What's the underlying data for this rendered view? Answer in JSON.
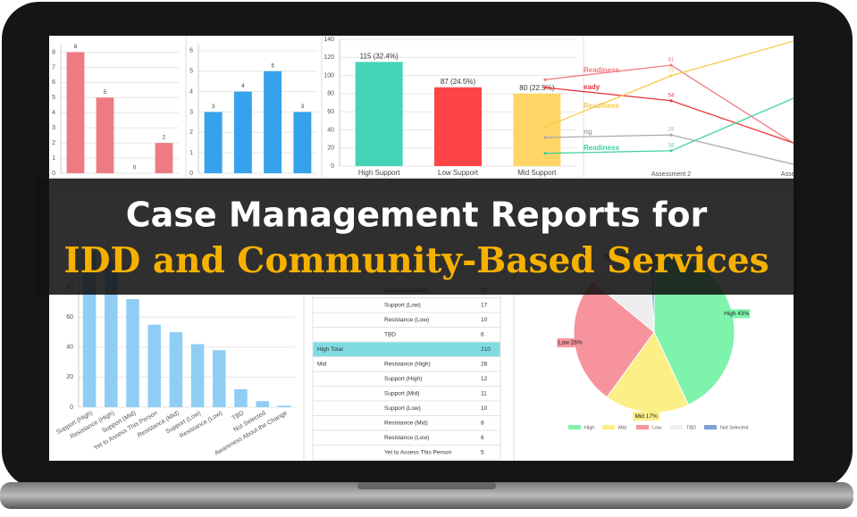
{
  "banner": {
    "line1": "Case Management Reports for",
    "line2": "IDD and Community-Based Services"
  },
  "chart_data": [
    {
      "type": "bar",
      "categories": [
        null,
        null,
        null,
        null
      ],
      "values": [
        8,
        5,
        0,
        2
      ],
      "color": "#ee7b84",
      "ylim": [
        0,
        8.5
      ],
      "yticks": [
        0,
        1,
        2,
        3,
        4,
        5,
        6,
        7,
        8
      ],
      "grid": true,
      "data_labels": true
    },
    {
      "type": "bar",
      "categories": [
        null,
        null,
        null,
        null
      ],
      "values": [
        3,
        4,
        5,
        3
      ],
      "color": "#36a2eb",
      "ylim": [
        0,
        6.3
      ],
      "yticks": [
        0,
        1,
        2,
        3,
        4,
        5,
        6
      ],
      "grid": true,
      "data_labels": true
    },
    {
      "type": "bar",
      "categories": [
        "High Support",
        "Low Support",
        "Mid Support"
      ],
      "values": [
        115,
        87,
        80
      ],
      "value_labels": [
        "115 (32.4%)",
        "87 (24.5%)",
        "80 (22.5%)"
      ],
      "colors": [
        "#45d4b6",
        "#ff4447",
        "#ffd666"
      ],
      "ylim": [
        0,
        140
      ],
      "yticks": [
        0,
        20,
        40,
        60,
        80,
        100,
        120,
        140
      ],
      "grid": true,
      "data_labels": true
    },
    {
      "type": "line",
      "categories": [
        null,
        "Assessment 2",
        "Assessmen"
      ],
      "series": [
        {
          "name": "Readiness",
          "color": "#f07a80",
          "values": [
            70,
            81,
            20
          ]
        },
        {
          "name": "eady",
          "color": "#e8383d",
          "values": [
            64,
            54,
            21
          ]
        },
        {
          "name": "Readiness",
          "color": "#f6c94d",
          "values": [
            34,
            73,
            100
          ]
        },
        {
          "name": "ng",
          "color": "#aaaaaa",
          "values": [
            26,
            28,
            5
          ]
        },
        {
          "name": "Readiness",
          "color": "#3fd19a",
          "values": [
            14,
            16,
            57
          ]
        }
      ]
    },
    {
      "type": "bar",
      "categories": [
        "Support (High)",
        "Resistance (High)",
        "Support (Mid)",
        "Yet to Assess This Person",
        "Resistance (Mid)",
        "Support (Low)",
        "Resistance (Low)",
        "TBD",
        "Not Selected",
        "Awareness About the Change"
      ],
      "values": [
        104,
        97,
        72,
        55,
        50,
        42,
        38,
        12,
        4,
        1
      ],
      "color": "#8fcdf5",
      "ylim": [
        0,
        100
      ],
      "yticks": [
        0,
        20,
        40,
        60,
        80
      ],
      "grid": true,
      "data_labels": false
    },
    {
      "type": "pie",
      "categories": [
        "High",
        "Mid",
        "Low",
        "TBD",
        "Not Selected"
      ],
      "values": [
        43,
        17,
        26,
        13,
        1
      ],
      "value_labels": [
        "High 43%",
        "Mid 17%",
        "Low 26%",
        "TBD 13%",
        null
      ],
      "colors": [
        "#7ef3ab",
        "#fbef86",
        "#f7939d",
        "#eeeeee",
        "#7f9fd8"
      ]
    }
  ],
  "table": {
    "rows": [
      [
        null,
        "Resistance (Mid)",
        "39"
      ],
      [
        null,
        "Support (Low)",
        "17"
      ],
      [
        null,
        "Resistance (Low)",
        "10"
      ],
      [
        null,
        "TBD",
        "6"
      ],
      [
        "High Total",
        null,
        "210"
      ],
      [
        "Mid",
        "Resistance (High)",
        "28"
      ],
      [
        null,
        "Support (High)",
        "12"
      ],
      [
        null,
        "Support (Mid)",
        "11"
      ],
      [
        null,
        "Support (Low)",
        "10"
      ],
      [
        null,
        "Resistance (Mid)",
        "8"
      ],
      [
        null,
        "Resistance (Low)",
        "6"
      ],
      [
        null,
        "Yet to Assess This Person",
        "5"
      ]
    ]
  }
}
